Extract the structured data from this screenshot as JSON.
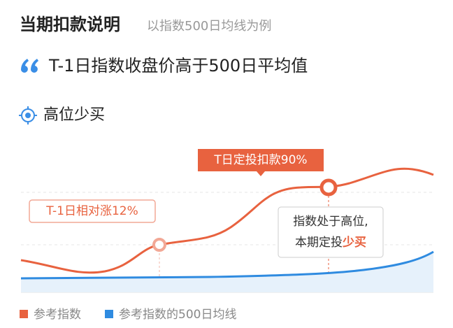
{
  "header": {
    "title": "当期扣款说明",
    "subtitle": "以指数500日均线为例"
  },
  "condition": "T-1日指数收盘价高于500日平均值",
  "section": {
    "title": "高位少买"
  },
  "chart": {
    "labels": {
      "left": "T-1日相对涨12%",
      "top": "T日定投扣款90%",
      "note_line1": "指数处于高位,",
      "note_line2": "本期定投",
      "note_highlight": "少买"
    },
    "legend": [
      "参考指数",
      "参考指数的500日均线"
    ]
  }
}
